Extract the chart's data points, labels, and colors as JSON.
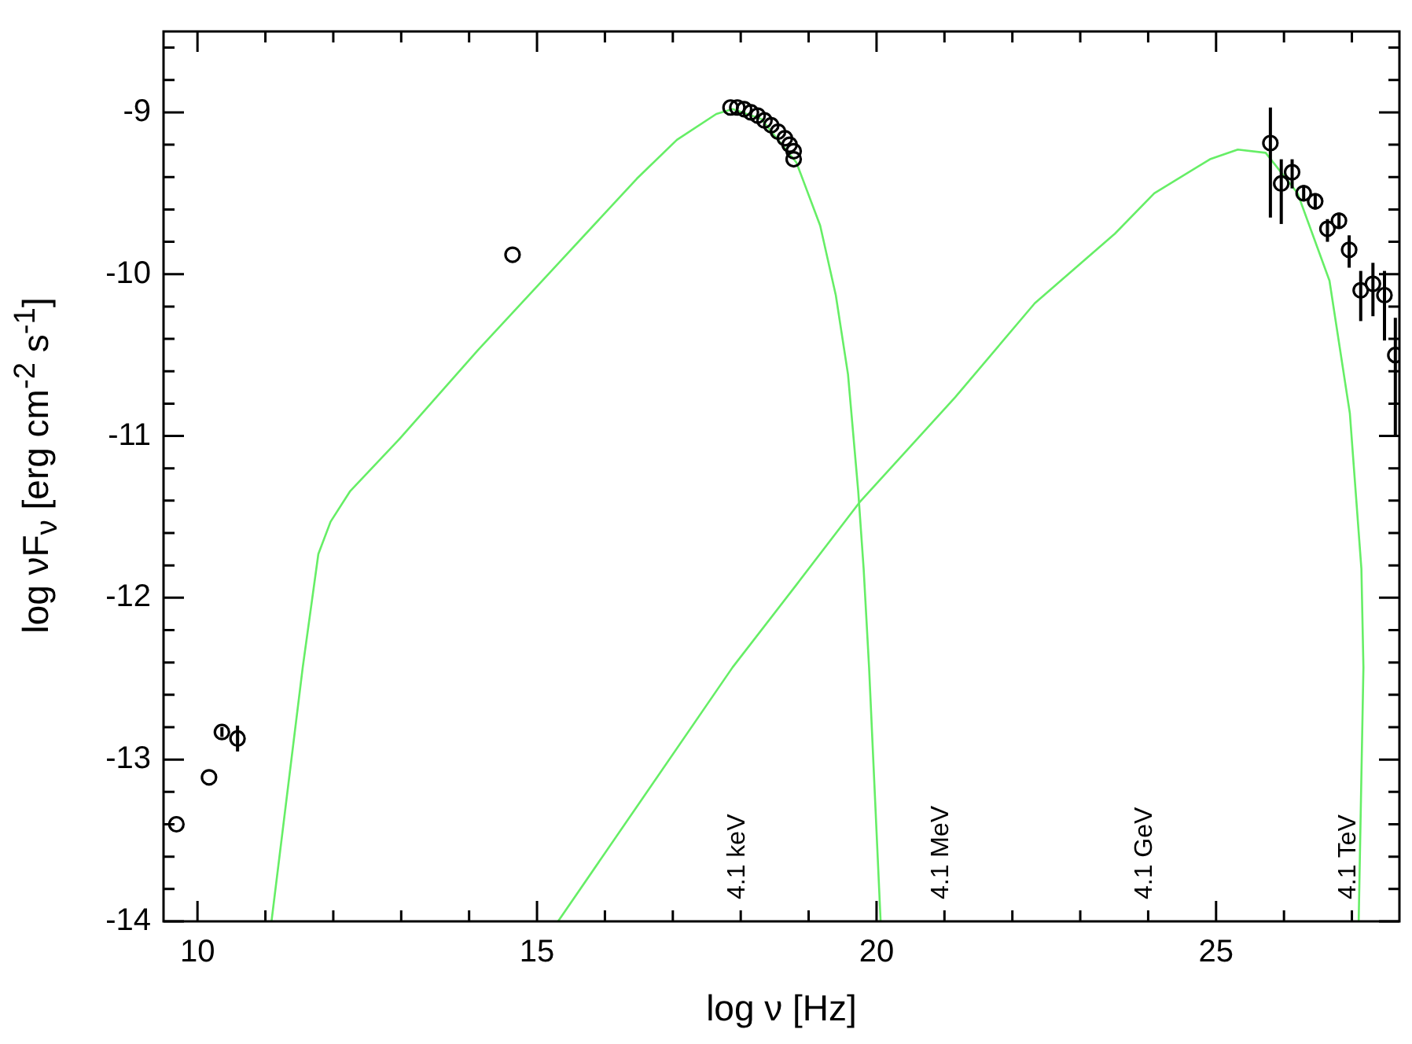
{
  "chart_data": {
    "type": "scatter",
    "xlabel": "log ν [Hz]",
    "ylabel": "log νF$_{ν}$ [erg cm$^{-2}$ s$^{-1}$]",
    "xlim": [
      9.5,
      27.7
    ],
    "ylim": [
      -14,
      -8.5
    ],
    "xticks": [
      10,
      {
        "value": 11,
        "label": null
      },
      {
        "value": 12,
        "label": null
      },
      {
        "value": 13,
        "label": null
      },
      {
        "value": 14,
        "label": null
      },
      15,
      {
        "value": 16,
        "label": null
      },
      {
        "value": 17,
        "label": null
      },
      {
        "value": 18,
        "label": null
      },
      {
        "value": 19,
        "label": null
      },
      20,
      {
        "value": 21,
        "label": null
      },
      {
        "value": 22,
        "label": null
      },
      {
        "value": 23,
        "label": null
      },
      {
        "value": 24,
        "label": null
      },
      25,
      {
        "value": 26,
        "label": null
      },
      {
        "value": 27,
        "label": null
      }
    ],
    "yticks": [
      {
        "value": -8.6,
        "label": null
      },
      {
        "value": -8.8,
        "label": null
      },
      -9,
      {
        "value": -9.2,
        "label": null
      },
      {
        "value": -9.4,
        "label": null
      },
      {
        "value": -9.6,
        "label": null
      },
      {
        "value": -9.8,
        "label": null
      },
      -10,
      {
        "value": -10.2,
        "label": null
      },
      {
        "value": -10.4,
        "label": null
      },
      {
        "value": -10.6,
        "label": null
      },
      {
        "value": -10.8,
        "label": null
      },
      -11,
      {
        "value": -11.2,
        "label": null
      },
      {
        "value": -11.4,
        "label": null
      },
      {
        "value": -11.6,
        "label": null
      },
      {
        "value": -11.8,
        "label": null
      },
      -12,
      {
        "value": -12.2,
        "label": null
      },
      {
        "value": -12.4,
        "label": null
      },
      {
        "value": -12.6,
        "label": null
      },
      {
        "value": -12.8,
        "label": null
      },
      -13,
      {
        "value": -13.2,
        "label": null
      },
      {
        "value": -13.4,
        "label": null
      },
      {
        "value": -13.6,
        "label": null
      },
      {
        "value": -13.8,
        "label": null
      },
      -14
    ],
    "grid": false,
    "legend": false,
    "annotations": [
      "4.1 keV",
      "4.1 MeV",
      "4.1 GeV",
      "4.1 TeV"
    ],
    "series": [
      {
        "color": "#000000",
        "marker": "circle",
        "x": [
          9.69,
          10.17,
          10.36,
          10.59,
          14.64,
          17.85,
          17.95,
          18.05,
          18.15,
          18.25,
          18.35,
          18.45,
          18.55,
          18.65,
          18.72,
          18.78,
          18.78,
          25.8,
          25.96,
          26.12,
          26.29,
          26.46,
          26.64,
          26.81,
          26.96,
          27.13,
          27.31,
          27.48,
          27.64
        ],
        "values": [
          -13.4,
          -13.11,
          -12.83,
          -12.87,
          -9.88,
          -8.97,
          -8.97,
          -8.98,
          -9.0,
          -9.02,
          -9.05,
          -9.08,
          -9.12,
          -9.16,
          -9.2,
          -9.24,
          -9.29,
          -9.19,
          -9.44,
          -9.37,
          -9.5,
          -9.55,
          -9.72,
          -9.67,
          -9.85,
          -10.1,
          -10.06,
          -10.13,
          -10.5
        ],
        "errors": [
          null,
          null,
          [
            -12.86,
            -12.8
          ],
          [
            -12.95,
            -12.79
          ],
          null,
          null,
          null,
          null,
          null,
          null,
          null,
          null,
          null,
          null,
          null,
          null,
          null,
          [
            -9.65,
            -8.97
          ],
          [
            -9.69,
            -9.29
          ],
          [
            -9.47,
            -9.29
          ],
          [
            -9.55,
            -9.45
          ],
          [
            -9.6,
            -9.5
          ],
          [
            -9.8,
            -9.66
          ],
          [
            -9.72,
            -9.62
          ],
          [
            -9.96,
            -9.76
          ],
          [
            -10.29,
            -9.98
          ],
          [
            -10.26,
            -9.93
          ],
          [
            -10.41,
            -9.98
          ],
          [
            -11.0,
            -10.27
          ]
        ]
      },
      {
        "type": "line",
        "color": "#66ee66",
        "marker": "none",
        "x": [
          11.09,
          11.55,
          11.78,
          11.96,
          12.25,
          12.95,
          14.13,
          15.3,
          16.47,
          17.06,
          17.64,
          17.88,
          18.3,
          18.82,
          19.17,
          19.4,
          19.58,
          19.73,
          19.81,
          19.89,
          20.06
        ],
        "values": [
          -14,
          -12.43,
          -11.73,
          -11.53,
          -11.34,
          -11.03,
          -10.47,
          -9.94,
          -9.41,
          -9.17,
          -9.01,
          -8.98,
          -9.04,
          -9.31,
          -9.7,
          -10.13,
          -10.62,
          -11.34,
          -11.82,
          -12.43,
          -14
        ]
      },
      {
        "type": "line",
        "color": "#66ee66",
        "marker": "none",
        "x": [
          15.31,
          17.88,
          18.82,
          19.75,
          21.16,
          22.33,
          23.51,
          24.09,
          24.91,
          25.32,
          25.73,
          26.2,
          26.67,
          26.97,
          27.14,
          27.17,
          27.1
        ],
        "values": [
          -14,
          -12.43,
          -11.92,
          -11.41,
          -10.76,
          -10.18,
          -9.75,
          -9.5,
          -9.29,
          -9.23,
          -9.25,
          -9.5,
          -10.04,
          -10.86,
          -11.82,
          -12.43,
          -14
        ]
      }
    ]
  }
}
